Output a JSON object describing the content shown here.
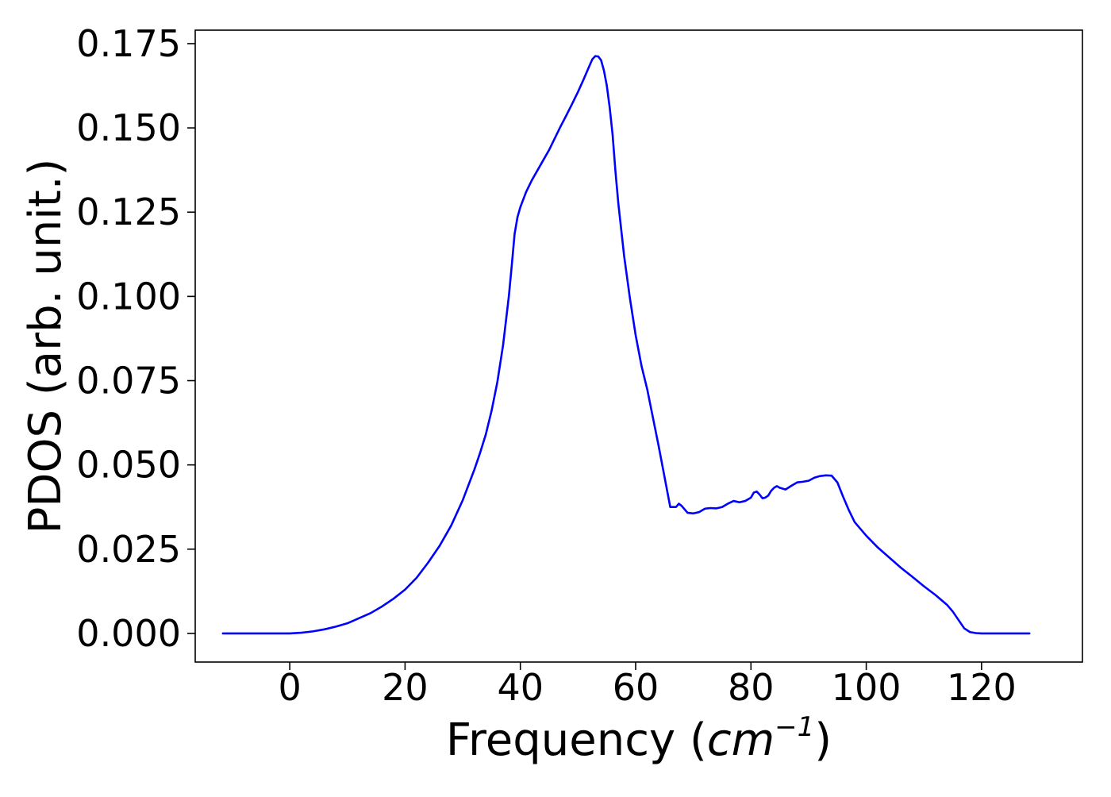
{
  "chart_data": {
    "type": "line",
    "xlabel": "Frequency (cm⁻¹)",
    "xlabel_parts": {
      "prefix": "Frequency (",
      "var": "cm",
      "sup": "−1",
      "suffix": ")"
    },
    "ylabel": "PDOS (arb. unit.)",
    "xlim": [
      -16.4,
      137.5
    ],
    "ylim": [
      -0.0085,
      0.179
    ],
    "grid": false,
    "xticks": [
      0,
      20,
      40,
      60,
      80,
      100,
      120
    ],
    "xtick_labels": [
      "0",
      "20",
      "40",
      "60",
      "80",
      "100",
      "120"
    ],
    "yticks": [
      0,
      0.025,
      0.05,
      0.075,
      0.1,
      0.125,
      0.15,
      0.175
    ],
    "ytick_labels": [
      "0.000",
      "0.025",
      "0.050",
      "0.075",
      "0.100",
      "0.125",
      "0.150",
      "0.175"
    ],
    "colors": {
      "series": "#0000ff",
      "axes": "#000000",
      "background": "#ffffff"
    },
    "series": [
      {
        "x": [
          -11.6,
          -6,
          0,
          2,
          4,
          6,
          8,
          10,
          12,
          14,
          16,
          18,
          20,
          22,
          24,
          26,
          28,
          30,
          32,
          33,
          34,
          35,
          36,
          37,
          38,
          38.5,
          39,
          39.5,
          40,
          41,
          42,
          43,
          44,
          45,
          46,
          47,
          48,
          49,
          50,
          51,
          52,
          52.5,
          53,
          53.5,
          54,
          54.5,
          55,
          55.5,
          56,
          56.5,
          57,
          58,
          59,
          60,
          61,
          62,
          63,
          64,
          65,
          66,
          67,
          67.5,
          68,
          69,
          70,
          71,
          72,
          73,
          74,
          75,
          76,
          77,
          78,
          79,
          80,
          80.5,
          81,
          81.5,
          82,
          82.5,
          83,
          83.5,
          84,
          84.5,
          85,
          86,
          87,
          88,
          89,
          90,
          91,
          92,
          93,
          94,
          95,
          96,
          97,
          98,
          99,
          100,
          102,
          104,
          106,
          108,
          110,
          112,
          114,
          115,
          116,
          117,
          118,
          119,
          120,
          124,
          128.3
        ],
        "y": [
          0,
          0,
          0,
          0.0002,
          0.0006,
          0.0012,
          0.002,
          0.003,
          0.0045,
          0.006,
          0.008,
          0.0103,
          0.013,
          0.0165,
          0.021,
          0.026,
          0.032,
          0.0395,
          0.0485,
          0.0535,
          0.059,
          0.066,
          0.0745,
          0.0855,
          0.1,
          0.109,
          0.1185,
          0.1235,
          0.1265,
          0.131,
          0.1345,
          0.1375,
          0.1405,
          0.1435,
          0.147,
          0.1505,
          0.1538,
          0.1572,
          0.1607,
          0.1645,
          0.1685,
          0.1704,
          0.1713,
          0.1712,
          0.1701,
          0.167,
          0.1625,
          0.156,
          0.148,
          0.137,
          0.1275,
          0.112,
          0.0995,
          0.0885,
          0.0795,
          0.0725,
          0.064,
          0.0555,
          0.0465,
          0.0375,
          0.0375,
          0.0385,
          0.0378,
          0.0358,
          0.0356,
          0.036,
          0.037,
          0.0372,
          0.0371,
          0.0375,
          0.0385,
          0.0393,
          0.0389,
          0.0393,
          0.0403,
          0.0418,
          0.0421,
          0.0412,
          0.0401,
          0.0403,
          0.0409,
          0.0423,
          0.0432,
          0.0437,
          0.0432,
          0.0427,
          0.0438,
          0.0448,
          0.045,
          0.0453,
          0.0462,
          0.0467,
          0.0469,
          0.0468,
          0.0448,
          0.0405,
          0.0365,
          0.033,
          0.031,
          0.029,
          0.0255,
          0.0225,
          0.0195,
          0.0168,
          0.014,
          0.0114,
          0.0085,
          0.0065,
          0.004,
          0.0015,
          0.0004,
          0.0001,
          0,
          0,
          0
        ]
      }
    ]
  }
}
